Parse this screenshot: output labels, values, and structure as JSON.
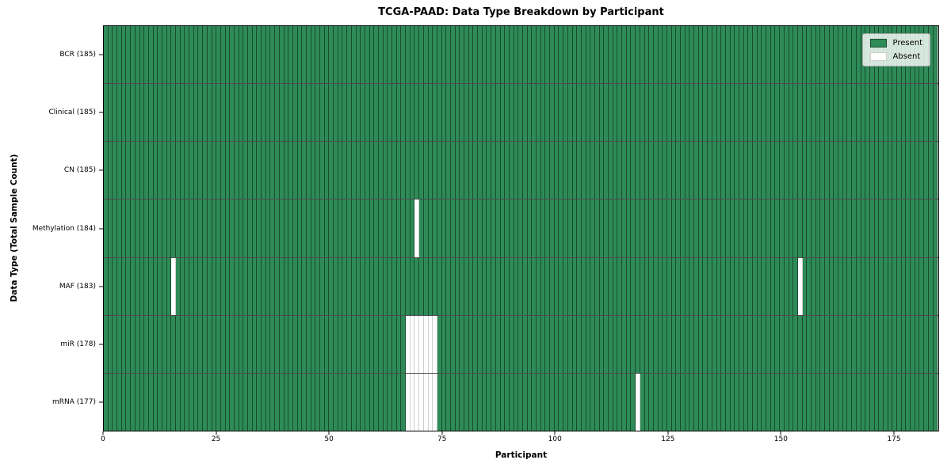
{
  "title": "TCGA-PAAD: Data Type Breakdown by Participant",
  "xlabel": "Participant",
  "ylabel": "Data Type (Total Sample Count)",
  "colors": {
    "figure_background": "#ffffff",
    "present": "#2e8b57",
    "absent": "#ffffff",
    "present_cell_edge": "rgba(0,0,0,0.45)",
    "absent_cell_edge": "#cfcfcf",
    "row_separator": "rgba(0,0,0,0.7)",
    "legend_background": "rgba(255,255,255,0.8)",
    "legend_border": "#a6a6a6"
  },
  "legend": {
    "items": [
      {
        "label": "Present",
        "color": "#2e8b57",
        "edge": "rgba(0,0,0,0.45)"
      },
      {
        "label": "Absent",
        "color": "#ffffff",
        "edge": "#cfcfcf"
      }
    ]
  },
  "chart_data": {
    "type": "heatmap",
    "title": "TCGA-PAAD: Data Type Breakdown by Participant",
    "xlabel": "Participant",
    "ylabel": "Data Type (Total Sample Count)",
    "legend_entries": [
      "Present",
      "Absent"
    ],
    "legend_position": "upper right",
    "n_participants": 185,
    "xlim": [
      0,
      185
    ],
    "x_ticks": [
      0,
      25,
      50,
      75,
      100,
      125,
      150,
      175
    ],
    "rows": [
      {
        "label": "BCR (185)",
        "data_type": "BCR",
        "total": 185,
        "absent_participants": []
      },
      {
        "label": "Clinical (185)",
        "data_type": "Clinical",
        "total": 185,
        "absent_participants": []
      },
      {
        "label": "CN (185)",
        "data_type": "CN",
        "total": 185,
        "absent_participants": []
      },
      {
        "label": "Methylation (184)",
        "data_type": "Methylation",
        "total": 184,
        "absent_participants": [
          69
        ]
      },
      {
        "label": "MAF (183)",
        "data_type": "MAF",
        "total": 183,
        "absent_participants": [
          15,
          154
        ]
      },
      {
        "label": "miR (178)",
        "data_type": "miR",
        "total": 178,
        "absent_participants": [
          67,
          68,
          69,
          70,
          71,
          72,
          73
        ]
      },
      {
        "label": "mRNA (177)",
        "data_type": "mRNA",
        "total": 177,
        "absent_participants": [
          67,
          68,
          69,
          70,
          71,
          72,
          73,
          118
        ]
      }
    ]
  }
}
